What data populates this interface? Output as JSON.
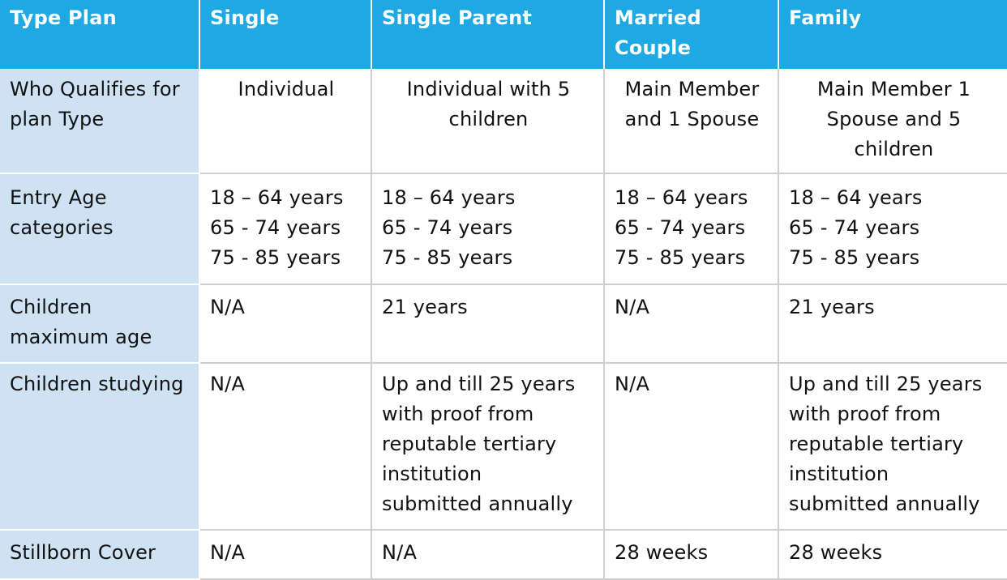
{
  "header": {
    "col0": "Type Plan",
    "col1": "Single",
    "col2": "Single Parent",
    "col3_line1": "Married",
    "col3_line2": "Couple",
    "col4": "Family"
  },
  "rows": {
    "qualifies": {
      "label_line1": "Who Qualifies for",
      "label_line2": "plan Type",
      "single": "Individual",
      "single_parent_line1": "Individual with 5",
      "single_parent_line2": "children",
      "married_line1": "Main Member",
      "married_line2": "and 1 Spouse",
      "family_line1": "Main Member 1",
      "family_line2": "Spouse and 5",
      "family_line3": "children"
    },
    "entry_age": {
      "label_line1": "Entry Age",
      "label_line2": "categories",
      "ranges": [
        "18 – 64 years",
        "65 - 74 years",
        "75 - 85 years"
      ]
    },
    "children_max_age": {
      "label_line1": "Children",
      "label_line2": "maximum age",
      "single": "N/A",
      "single_parent": "21 years",
      "married": "N/A",
      "family": "21 years"
    },
    "children_studying": {
      "label": "Children studying",
      "single": "N/A",
      "married": "N/A",
      "detail_lines": [
        "Up and till 25 years",
        "with proof from",
        "reputable tertiary",
        "institution",
        "submitted annually"
      ]
    },
    "stillborn": {
      "label": "Stillborn Cover",
      "single": "N/A",
      "single_parent": "N/A",
      "married": "28 weeks",
      "family": "28 weeks"
    }
  },
  "colors": {
    "header_bg": "#1ea8e4",
    "header_text": "#ffffff",
    "row_label_bg": "#cfe2f3",
    "grid_line": "#cfcfcf"
  }
}
